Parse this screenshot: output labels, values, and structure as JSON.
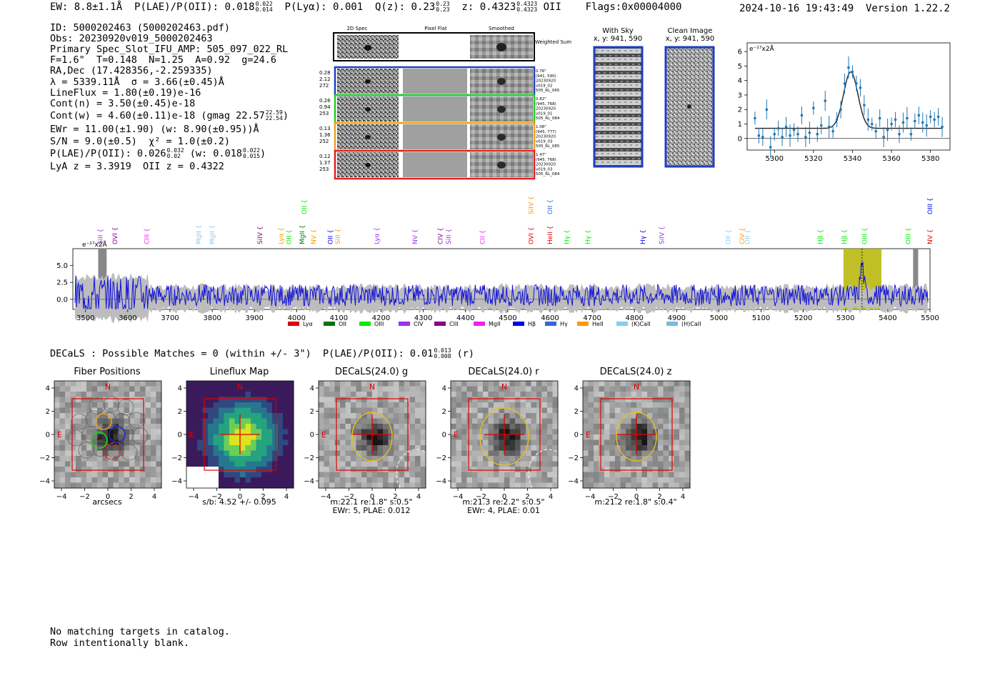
{
  "header": {
    "ew": "EW: 8.8±1.1Å",
    "plae_label": "P(LAE)/P(OII): 0.018",
    "plae_hi": "0.022",
    "plae_lo": "0.014",
    "plya": "P(Lyα): 0.001",
    "qz_label": "Q(z): 0.23",
    "qz_hi": "0.23",
    "qz_lo": "0.23",
    "z_label": "z: 0.4323",
    "z_hi": "0.4323",
    "z_lo": "0.4323",
    "line": "OII",
    "flags": "Flags:0x00004000",
    "datetime": "2024-10-16 19:43:49  Version 1.22.2"
  },
  "info": {
    "id": "ID: 5000202463 (5000202463.pdf)",
    "obs": "Obs: 20230920v019_5000202463",
    "primary": "Primary Spec_Slot_IFU_AMP: 505_097_022_RL",
    "params": "F=1.6\"  T=0.148  N=1.25  A=0.92  g=24.6",
    "radec": "RA,Dec (17.428356,-2.259335)",
    "lambda": "λ = 5339.11Å  σ = 3.66(±0.45)Å",
    "lineflux": "LineFlux = 1.80(±0.19)e-16",
    "contn": "Cont(n) = 3.50(±0.45)e-18",
    "contw": "Cont(w) = 4.60(±0.11)e-18 (gmag 22.57",
    "contw_hi": "22.59",
    "contw_lo": "22.54",
    "contw_end": ")",
    "ewr": "EWr = 11.00(±1.90) (w: 8.90(±0.95))Å",
    "sn": "S/N = 9.0(±0.5)  χ² = 1.0(±0.2)",
    "plae2": "P(LAE)/P(OII): 0.026",
    "plae2_hi": "0.032",
    "plae2_lo": "0.02",
    "plae2_w": "(w: 0.018",
    "plae2_w_hi": "0.022",
    "plae2_w_lo": "0.015",
    "plae2_end": ")",
    "lyaz": "LyA z = 3.3919  OII z = 0.4322"
  },
  "cutouts": {
    "col_titles": [
      "2D Spec",
      "Pixel Flat",
      "Smoothed"
    ],
    "weighted_label": "Weighted Sum",
    "rows": [
      {
        "left": [
          "0.28",
          "2.12",
          "272"
        ],
        "right": [
          "0.76\"",
          "(941, 590)",
          "20230920",
          "v019_02",
          "505_RL_065"
        ],
        "color": "#1f3fbf"
      },
      {
        "left": [
          "0.26",
          "0.94",
          "253"
        ],
        "right": [
          "0.82\"",
          "(945, 768)",
          "20230920",
          "v019_01",
          "505_RL_084"
        ],
        "color": "#22cc22"
      },
      {
        "left": [
          "0.13",
          "1.36",
          "252"
        ],
        "right": [
          "1.08\"",
          "(945, 777)",
          "20230920",
          "v019_03",
          "505_RL_085"
        ],
        "color": "#f0a020"
      },
      {
        "left": [
          "0.12",
          "1.37",
          "253"
        ],
        "right": [
          "1.47\"",
          "(945, 768)",
          "20230920",
          "v019_03",
          "505_RL_084"
        ],
        "color": "#e02020"
      }
    ]
  },
  "sky": {
    "with_sky": "With Sky",
    "with_sky_xy": "x, y: 941, 590",
    "clean": "Clean Image",
    "clean_xy": "x, y: 941, 590"
  },
  "zoom_chart": {
    "ylabel": "e⁻¹⁷x2Å",
    "xticks": [
      "5300",
      "5320",
      "5340",
      "5360",
      "5380"
    ],
    "yticks": [
      "0",
      "1",
      "2",
      "3",
      "4",
      "5",
      "6"
    ]
  },
  "chart_data": [
    {
      "type": "scatter",
      "title": "",
      "xlabel": "",
      "ylabel": "e-17 x2Å",
      "xlim": [
        5286,
        5390
      ],
      "ylim": [
        -0.8,
        6.6
      ],
      "x": [
        5290,
        5292,
        5294,
        5296,
        5298,
        5300,
        5302,
        5304,
        5306,
        5308,
        5310,
        5312,
        5314,
        5316,
        5318,
        5320,
        5322,
        5324,
        5326,
        5328,
        5330,
        5332,
        5334,
        5336,
        5338,
        5340,
        5342,
        5344,
        5346,
        5348,
        5350,
        5352,
        5354,
        5356,
        5358,
        5360,
        5362,
        5364,
        5366,
        5368,
        5370,
        5372,
        5374,
        5376,
        5378,
        5380,
        5382,
        5384,
        5386
      ],
      "y": [
        1.4,
        0.2,
        0.1,
        2.0,
        -0.6,
        0.3,
        0.7,
        0.1,
        0.8,
        0.2,
        0.6,
        0.3,
        1.6,
        0.1,
        0.4,
        2.1,
        0.3,
        0.9,
        2.6,
        0.8,
        0.5,
        1.3,
        2.0,
        3.8,
        4.9,
        4.6,
        3.8,
        3.5,
        2.3,
        1.3,
        1.0,
        0.5,
        1.4,
        0.1,
        0.6,
        1.0,
        1.3,
        0.3,
        1.1,
        1.4,
        0.3,
        1.2,
        1.6,
        1.1,
        0.9,
        1.5,
        1.3,
        1.5,
        0.8
      ],
      "fit": {
        "center": 5339.1,
        "sigma": 3.66,
        "amplitude": 3.9,
        "continuum": 0.7
      }
    },
    {
      "type": "line",
      "title": "",
      "ylabel": "e-17 x2Å",
      "xlim": [
        3470,
        5500
      ],
      "ylim": [
        -1.5,
        7.5
      ],
      "xticks": [
        3500,
        3600,
        3700,
        3800,
        3900,
        4000,
        4100,
        4200,
        4300,
        4400,
        4500,
        4600,
        4700,
        4800,
        4900,
        5000,
        5100,
        5200,
        5300,
        5400,
        5500
      ],
      "yticks": [
        0.0,
        2.5,
        5.0
      ],
      "highlight": [
        5295,
        5385
      ],
      "peak": 5339,
      "legend": [
        "Lyα",
        "OII",
        "OIII",
        "CIV",
        "CIII",
        "MgII",
        "Hβ",
        "Hγ",
        "HeII",
        "(K)CaII",
        "(H)CaII"
      ],
      "legend_colors": [
        "#e00000",
        "#007700",
        "#00ee00",
        "#9933ee",
        "#880088",
        "#ee22ee",
        "#0000ee",
        "#3366dd",
        "#ff9900",
        "#88ccee",
        "#77bbdd"
      ],
      "line_markers": [
        {
          "label": "SiII",
          "x": 3535,
          "color": "#9933ee",
          "row": 2
        },
        {
          "label": "OVI",
          "x": 3570,
          "color": "#880088",
          "row": 2
        },
        {
          "label": "CIII",
          "x": 3645,
          "color": "#ee22ee",
          "row": 2
        },
        {
          "label": "MgII",
          "x": 3768,
          "color": "#88ccee",
          "row": 2
        },
        {
          "label": "MgII",
          "x": 3800,
          "color": "#88ccee",
          "row": 2
        },
        {
          "label": "SiIV",
          "x": 3913,
          "color": "#880088",
          "row": 2
        },
        {
          "label": "Lyα",
          "x": 3963,
          "color": "#ff9900",
          "row": 2
        },
        {
          "label": "OII",
          "x": 3982,
          "color": "#00ee00",
          "row": 2
        },
        {
          "label": "MgII",
          "x": 4013,
          "color": "#007700",
          "row": 2
        },
        {
          "label": "OII",
          "x": 4018,
          "color": "#00ee00",
          "row": 1
        },
        {
          "label": "NV",
          "x": 4040,
          "color": "#ff9900",
          "row": 2
        },
        {
          "label": "OII",
          "x": 4080,
          "color": "#0000ee",
          "row": 2
        },
        {
          "label": "SiII",
          "x": 4098,
          "color": "#ff9900",
          "row": 2
        },
        {
          "label": "Lyα",
          "x": 4190,
          "color": "#9933ee",
          "row": 2
        },
        {
          "label": "NV",
          "x": 4280,
          "color": "#9933ee",
          "row": 2
        },
        {
          "label": "CIV",
          "x": 4340,
          "color": "#880088",
          "row": 2
        },
        {
          "label": "SiII",
          "x": 4360,
          "color": "#9933ee",
          "row": 2
        },
        {
          "label": "CII",
          "x": 4440,
          "color": "#ee22ee",
          "row": 2
        },
        {
          "label": "OVI",
          "x": 4555,
          "color": "#e00000",
          "row": 2
        },
        {
          "label": "SiIV",
          "x": 4555,
          "color": "#ff9900",
          "row": 1
        },
        {
          "label": "HeII",
          "x": 4600,
          "color": "#e00000",
          "row": 2
        },
        {
          "label": "OII",
          "x": 4600,
          "color": "#3366dd",
          "row": 1
        },
        {
          "label": "Hγ",
          "x": 4640,
          "color": "#00ee00",
          "row": 2
        },
        {
          "label": "Hγ",
          "x": 4690,
          "color": "#00ee00",
          "row": 2
        },
        {
          "label": "Hγ",
          "x": 4820,
          "color": "#0000ee",
          "row": 2
        },
        {
          "label": "SiIV",
          "x": 4865,
          "color": "#9933ee",
          "row": 2
        },
        {
          "label": "OII",
          "x": 5022,
          "color": "#88ccee",
          "row": 2
        },
        {
          "label": "CIV",
          "x": 5055,
          "color": "#ff9900",
          "row": 2
        },
        {
          "label": "OII",
          "x": 5068,
          "color": "#88ccee",
          "row": 2
        },
        {
          "label": "Hβ",
          "x": 5240,
          "color": "#00ee00",
          "row": 2
        },
        {
          "label": "Hβ",
          "x": 5297,
          "color": "#00ee00",
          "row": 2
        },
        {
          "label": "OIII",
          "x": 5345,
          "color": "#00ee00",
          "row": 2
        },
        {
          "label": "OIII",
          "x": 5448,
          "color": "#00ee00",
          "row": 2
        },
        {
          "label": "NV",
          "x": 5500,
          "color": "#e00000",
          "row": 2
        },
        {
          "label": "OIII",
          "x": 5500,
          "color": "#0000ee",
          "row": 1
        }
      ]
    }
  ],
  "decals": {
    "summary": "DECaLS : Possible Matches = 0 (within +/- 3\")  P(LAE)/P(OII): 0.01",
    "summary_hi": "0.013",
    "summary_lo": "0.008",
    "summary_end": "(r)"
  },
  "panels": [
    {
      "title": "Fiber Positions",
      "caption1": "arcsecs",
      "caption2": ""
    },
    {
      "title": "Lineflux Map",
      "caption1": "s/b: 4.52 +/- 0.095",
      "caption2": ""
    },
    {
      "title": "DECaLS(24.0) g",
      "caption1": "m:22.1  re:1.8\"  s:0.5\"",
      "caption2": "EWr: 5, PLAE: 0.012"
    },
    {
      "title": "DECaLS(24.0) r",
      "caption1": "m:21.3  re:2.2\"  s:0.5\"",
      "caption2": "EWr: 4, PLAE: 0.01"
    },
    {
      "title": "DECaLS(24.0) z",
      "caption1": "m:21.2  re:1.8\"  s:0.4\"",
      "caption2": ""
    }
  ],
  "panel_axes": {
    "ticks": [
      "−4",
      "−2",
      "0",
      "2",
      "4"
    ],
    "north": "N",
    "east": "E"
  },
  "footer": {
    "line1": "No matching targets in catalog.",
    "line2": "Row intentionally blank."
  }
}
